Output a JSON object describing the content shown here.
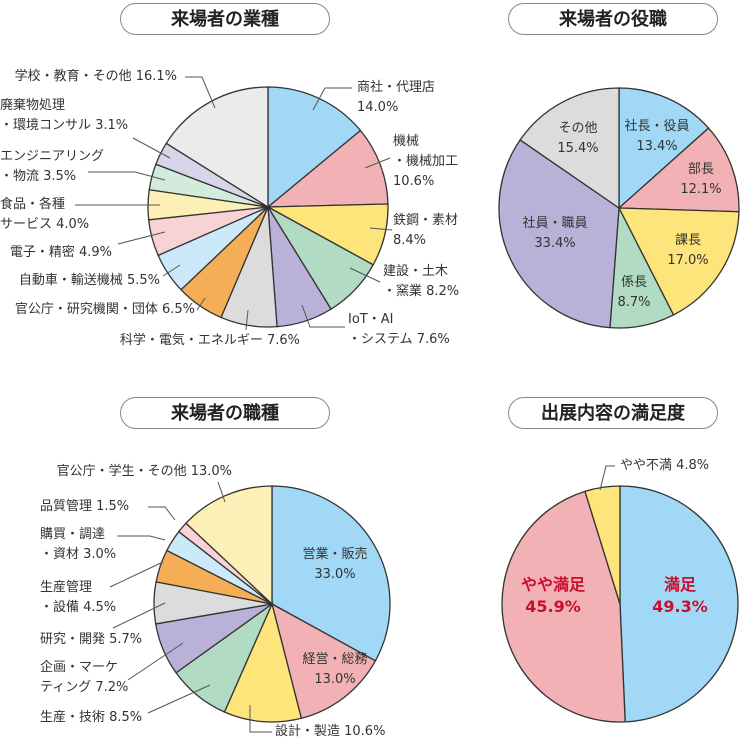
{
  "chart_data": [
    {
      "type": "pie",
      "title": "来場者の業種",
      "start": "top",
      "direction": "clockwise",
      "slices": [
        {
          "label": [
            "商社・代理店",
            "14.0%"
          ],
          "value": 14.0,
          "color": "#a0d8f5"
        },
        {
          "label": [
            "機械",
            "・機械加工",
            "10.6%"
          ],
          "value": 10.6,
          "color": "#f2b1b4"
        },
        {
          "label": [
            "鉄鋼・素材",
            "8.4%"
          ],
          "value": 8.4,
          "color": "#fde47b"
        },
        {
          "label": [
            "建設・土木",
            "・窯業 8.2%"
          ],
          "value": 8.2,
          "color": "#b1dbc2"
        },
        {
          "label": [
            "IoT・AI",
            "・システム 7.6%"
          ],
          "value": 7.6,
          "color": "#b9b1d8"
        },
        {
          "label": [
            "科学・電気・エネルギー 7.6%"
          ],
          "value": 7.6,
          "color": "#dcdcdc"
        },
        {
          "label": [
            "官公庁・研究機関・団体 6.5%"
          ],
          "value": 6.5,
          "color": "#f4ae55"
        },
        {
          "label": [
            "自動車・輸送機械 5.5%"
          ],
          "value": 5.5,
          "color": "#cce9f9"
        },
        {
          "label": [
            "電子・精密 4.9%"
          ],
          "value": 4.9,
          "color": "#f8d3d5"
        },
        {
          "label": [
            "食品・各種",
            "サービス 4.0%"
          ],
          "value": 4.0,
          "color": "#fdf0b6"
        },
        {
          "label": [
            "エンジニアリング",
            "・物流 3.5%"
          ],
          "value": 3.5,
          "color": "#d3ebdd"
        },
        {
          "label": [
            "廃棄物処理",
            "・環境コンサル 3.1%"
          ],
          "value": 3.1,
          "color": "#d8d4ea"
        },
        {
          "label": [
            "学校・教育・その他 16.1%"
          ],
          "value": 16.1,
          "color": "#ebebeb"
        }
      ]
    },
    {
      "type": "pie",
      "title": "来場者の役職",
      "start": "top",
      "direction": "clockwise",
      "slices": [
        {
          "label": [
            "社長・役員",
            "13.4%"
          ],
          "value": 13.4,
          "color": "#a0d8f5"
        },
        {
          "label": [
            "部長",
            "12.1%"
          ],
          "value": 12.1,
          "color": "#f2b1b4"
        },
        {
          "label": [
            "課長",
            "17.0%"
          ],
          "value": 17.0,
          "color": "#fde47b"
        },
        {
          "label": [
            "係長",
            "8.7%"
          ],
          "value": 8.7,
          "color": "#b1dbc2"
        },
        {
          "label": [
            "社員・職員",
            "33.4%"
          ],
          "value": 33.4,
          "color": "#b9b1d8"
        },
        {
          "label": [
            "その他",
            "15.4%"
          ],
          "value": 15.4,
          "color": "#dcdcdc"
        }
      ]
    },
    {
      "type": "pie",
      "title": "来場者の職種",
      "start": "top",
      "direction": "clockwise",
      "slices": [
        {
          "label": [
            "営業・販売",
            "33.0%"
          ],
          "value": 33.0,
          "color": "#a0d8f5"
        },
        {
          "label": [
            "経営・総務",
            "13.0%"
          ],
          "value": 13.0,
          "color": "#f2b1b4"
        },
        {
          "label": [
            "設計・製造 10.6%"
          ],
          "value": 10.6,
          "color": "#fde47b"
        },
        {
          "label": [
            "生産・技術 8.5%"
          ],
          "value": 8.5,
          "color": "#b1dbc2"
        },
        {
          "label": [
            "企画・マーケ",
            "ティング 7.2%"
          ],
          "value": 7.2,
          "color": "#b9b1d8"
        },
        {
          "label": [
            "研究・開発 5.7%"
          ],
          "value": 5.7,
          "color": "#dcdcdc"
        },
        {
          "label": [
            "生産管理",
            "・設備 4.5%"
          ],
          "value": 4.5,
          "color": "#f4ae55"
        },
        {
          "label": [
            "購買・調達",
            "・資材 3.0%"
          ],
          "value": 3.0,
          "color": "#cce9f9"
        },
        {
          "label": [
            "品質管理 1.5%"
          ],
          "value": 1.5,
          "color": "#f8d3d5"
        },
        {
          "label": [
            "官公庁・学生・その他 13.0%"
          ],
          "value": 13.0,
          "color": "#fdf0b6"
        }
      ]
    },
    {
      "type": "pie",
      "title": "出展内容の満足度",
      "start": "top",
      "direction": "clockwise",
      "slices": [
        {
          "label": [
            "満足",
            "49.3%"
          ],
          "value": 49.3,
          "color": "#a0d8f5"
        },
        {
          "label": [
            "やや満足",
            "45.9%"
          ],
          "value": 45.9,
          "color": "#f2b1b4"
        },
        {
          "label": [
            "やや不満 4.8%"
          ],
          "value": 4.8,
          "color": "#fde47b"
        }
      ],
      "label_color": "#c8102e"
    }
  ]
}
